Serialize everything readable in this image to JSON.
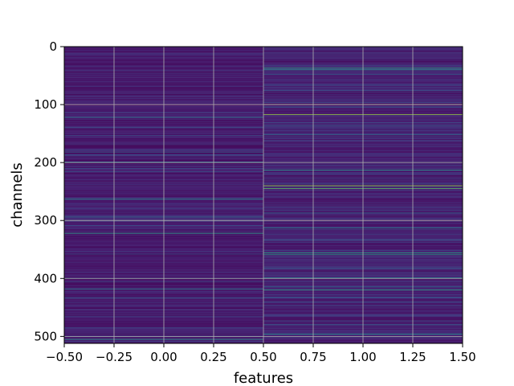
{
  "chart_data": {
    "type": "heatmap",
    "title": "",
    "xlabel": "features",
    "ylabel": "channels",
    "xlim": [
      -0.5,
      1.5
    ],
    "ylim": [
      512,
      0
    ],
    "y_inverted": true,
    "grid": true,
    "colormap": "viridis",
    "num_channels": 512,
    "num_features": 2,
    "xticks": [
      -0.5,
      -0.25,
      0.0,
      0.25,
      0.5,
      0.75,
      1.0,
      1.25,
      1.5
    ],
    "xtick_labels": [
      "−0.50",
      "−0.25",
      "0.00",
      "0.25",
      "0.50",
      "0.75",
      "1.00",
      "1.25",
      "1.50"
    ],
    "yticks": [
      0,
      100,
      200,
      300,
      400,
      500
    ],
    "ytick_labels": [
      "0",
      "100",
      "200",
      "300",
      "400",
      "500"
    ],
    "columns": [
      {
        "feature": 0,
        "base_level": 0.1,
        "bright_channels": [
          {
            "channel": 122,
            "value": 0.45
          },
          {
            "channel": 199,
            "value": 0.4
          },
          {
            "channel": 263,
            "value": 0.5
          },
          {
            "channel": 294,
            "value": 0.4
          },
          {
            "channel": 300,
            "value": 0.45
          },
          {
            "channel": 322,
            "value": 0.6
          },
          {
            "channel": 400,
            "value": 0.45
          },
          {
            "channel": 418,
            "value": 0.45
          },
          {
            "channel": 500,
            "value": 0.4
          },
          {
            "channel": 505,
            "value": 0.55
          }
        ]
      },
      {
        "feature": 1,
        "base_level": 0.12,
        "bright_channels": [
          {
            "channel": 37,
            "value": 0.6
          },
          {
            "channel": 40,
            "value": 0.55
          },
          {
            "channel": 100,
            "value": 0.95
          },
          {
            "channel": 117,
            "value": 0.85
          },
          {
            "channel": 200,
            "value": 0.5
          },
          {
            "channel": 213,
            "value": 0.55
          },
          {
            "channel": 240,
            "value": 0.85
          },
          {
            "channel": 245,
            "value": 0.75
          },
          {
            "channel": 313,
            "value": 0.45
          },
          {
            "channel": 356,
            "value": 0.6
          },
          {
            "channel": 359,
            "value": 0.55
          },
          {
            "channel": 399,
            "value": 0.5
          },
          {
            "channel": 420,
            "value": 0.6
          },
          {
            "channel": 496,
            "value": 0.5
          }
        ]
      }
    ]
  }
}
